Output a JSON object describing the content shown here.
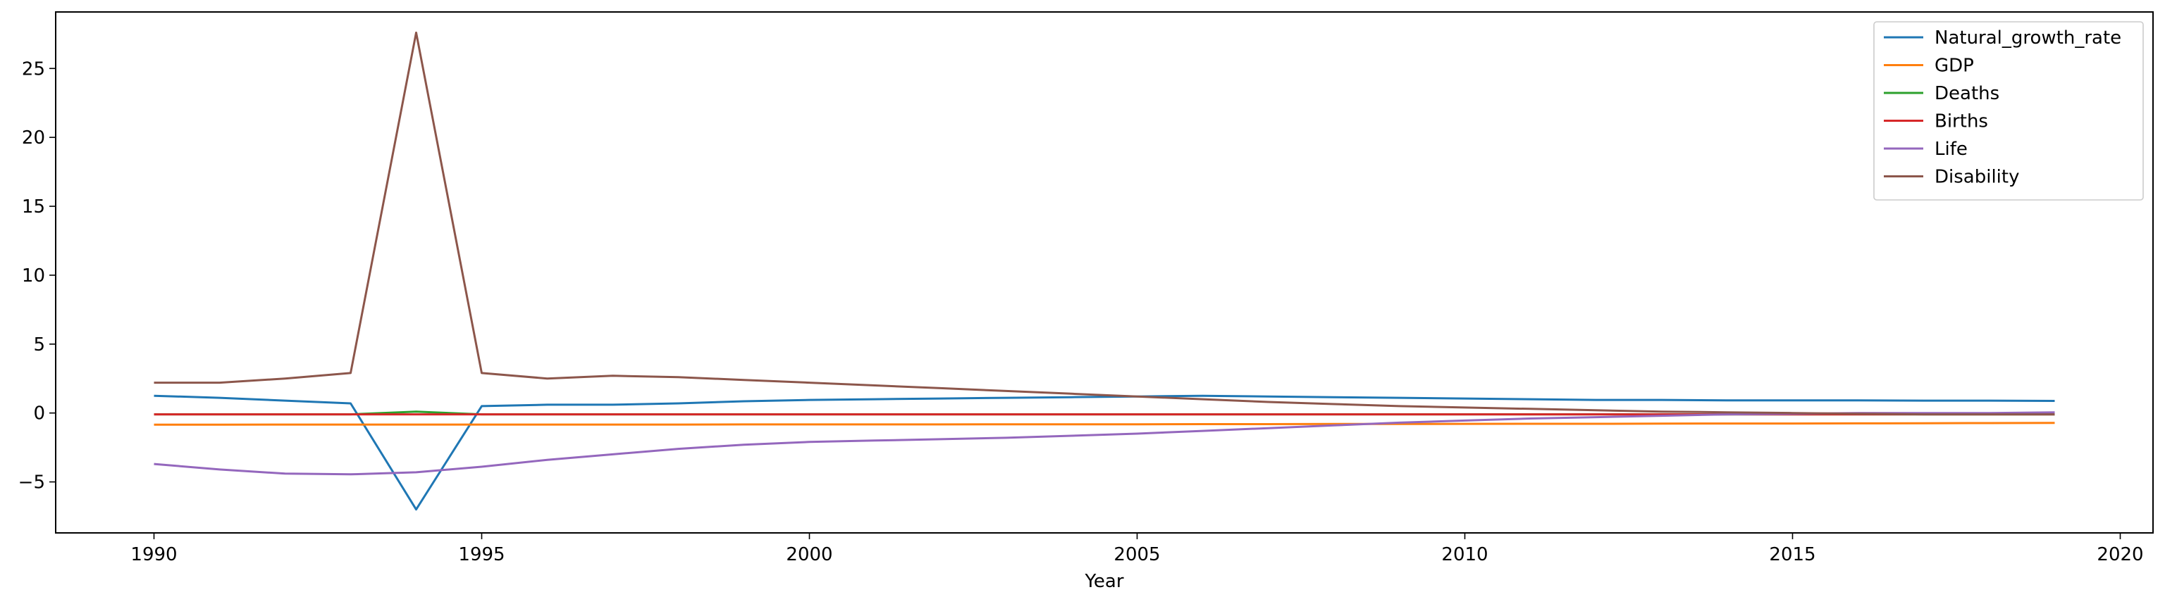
{
  "chart_data": {
    "type": "line",
    "title": "",
    "xlabel": "Year",
    "ylabel": "",
    "xlim": [
      1988.5,
      2020.5
    ],
    "ylim": [
      -8.7,
      29.1
    ],
    "xticks": [
      1990,
      1995,
      2000,
      2005,
      2010,
      2015,
      2020
    ],
    "yticks": [
      -5,
      0,
      5,
      10,
      15,
      20,
      25
    ],
    "grid": false,
    "legend_position": "top-right",
    "x": [
      1990,
      1991,
      1992,
      1993,
      1994,
      1995,
      1996,
      1997,
      1998,
      1999,
      2000,
      2001,
      2002,
      2003,
      2004,
      2005,
      2006,
      2007,
      2008,
      2009,
      2010,
      2011,
      2012,
      2013,
      2014,
      2015,
      2016,
      2017,
      2018,
      2019
    ],
    "series": [
      {
        "name": "Natural_growth_rate",
        "color": "#1f77b4",
        "values": [
          1.25,
          1.1,
          0.9,
          0.7,
          -7.0,
          0.5,
          0.6,
          0.6,
          0.7,
          0.85,
          0.95,
          1.0,
          1.05,
          1.1,
          1.15,
          1.2,
          1.25,
          1.2,
          1.15,
          1.1,
          1.05,
          1.0,
          0.95,
          0.95,
          0.92,
          0.92,
          0.92,
          0.9,
          0.9,
          0.88
        ]
      },
      {
        "name": "GDP",
        "color": "#ff7f0e",
        "values": [
          -0.85,
          -0.85,
          -0.84,
          -0.84,
          -0.84,
          -0.84,
          -0.84,
          -0.84,
          -0.84,
          -0.83,
          -0.83,
          -0.83,
          -0.83,
          -0.82,
          -0.82,
          -0.82,
          -0.81,
          -0.81,
          -0.8,
          -0.8,
          -0.79,
          -0.78,
          -0.78,
          -0.77,
          -0.76,
          -0.76,
          -0.75,
          -0.74,
          -0.73,
          -0.72
        ]
      },
      {
        "name": "Deaths",
        "color": "#2ca02c",
        "values": [
          -0.1,
          -0.1,
          -0.1,
          -0.1,
          0.1,
          -0.1,
          -0.1,
          -0.1,
          -0.1,
          -0.1,
          -0.1,
          -0.1,
          -0.1,
          -0.1,
          -0.1,
          -0.1,
          -0.1,
          -0.1,
          -0.1,
          -0.1,
          -0.1,
          -0.1,
          -0.1,
          -0.1,
          -0.1,
          -0.1,
          -0.1,
          -0.1,
          -0.1,
          -0.1
        ]
      },
      {
        "name": "Births",
        "color": "#d62728",
        "values": [
          -0.1,
          -0.1,
          -0.1,
          -0.1,
          -0.1,
          -0.1,
          -0.1,
          -0.1,
          -0.1,
          -0.1,
          -0.1,
          -0.1,
          -0.1,
          -0.1,
          -0.1,
          -0.1,
          -0.1,
          -0.1,
          -0.1,
          -0.1,
          -0.1,
          -0.1,
          -0.1,
          -0.1,
          -0.1,
          -0.1,
          -0.1,
          -0.1,
          -0.1,
          -0.1
        ]
      },
      {
        "name": "Life",
        "color": "#9467bd",
        "values": [
          -3.7,
          -4.1,
          -4.4,
          -4.45,
          -4.3,
          -3.9,
          -3.4,
          -3.0,
          -2.6,
          -2.3,
          -2.1,
          -2.0,
          -1.9,
          -1.8,
          -1.65,
          -1.5,
          -1.3,
          -1.1,
          -0.9,
          -0.7,
          -0.55,
          -0.4,
          -0.3,
          -0.2,
          -0.1,
          -0.05,
          0.0,
          0.0,
          0.0,
          0.05
        ]
      },
      {
        "name": "Disability",
        "color": "#8c564b",
        "values": [
          2.2,
          2.2,
          2.5,
          2.9,
          27.6,
          2.9,
          2.5,
          2.7,
          2.6,
          2.4,
          2.2,
          2.0,
          1.8,
          1.6,
          1.4,
          1.2,
          1.0,
          0.8,
          0.65,
          0.5,
          0.4,
          0.3,
          0.2,
          0.1,
          0.05,
          0.0,
          -0.05,
          -0.1,
          -0.1,
          -0.1
        ]
      }
    ]
  }
}
